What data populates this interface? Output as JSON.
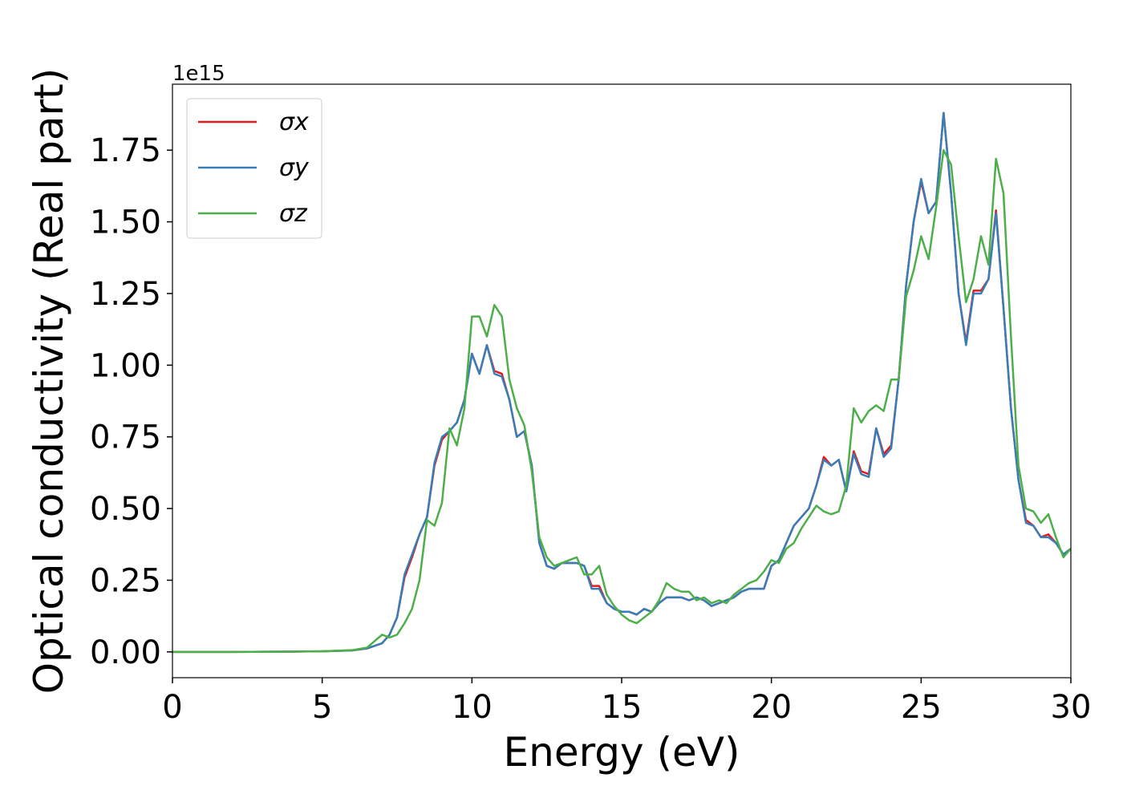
{
  "chart_data": {
    "type": "line",
    "xlabel": "Energy (eV)",
    "ylabel": "Optical conductivity (Real part)",
    "y_offset_text": "1e15",
    "xlim": [
      0,
      30
    ],
    "xticks": [
      0,
      5,
      10,
      15,
      20,
      25,
      30
    ],
    "ylim": [
      -0.09,
      1.98
    ],
    "yticks": [
      {
        "value": 0,
        "label": "0.00"
      },
      0.25,
      {
        "value": 0.5,
        "label": "0.50"
      },
      0.75,
      {
        "value": 1,
        "label": "1.00"
      },
      1.25,
      {
        "value": 1.5,
        "label": "1.50"
      },
      1.75
    ],
    "grid": false,
    "legend": "upper left",
    "x": [
      0,
      2,
      4,
      5,
      6,
      6.5,
      7,
      7.25,
      7.5,
      7.75,
      8,
      8.25,
      8.5,
      8.75,
      9,
      9.25,
      9.5,
      9.75,
      10,
      10.25,
      10.5,
      10.75,
      11,
      11.25,
      11.5,
      11.75,
      12,
      12.25,
      12.5,
      12.75,
      13,
      13.25,
      13.5,
      13.75,
      14,
      14.25,
      14.5,
      14.75,
      15,
      15.25,
      15.5,
      15.75,
      16,
      16.25,
      16.5,
      16.75,
      17,
      17.25,
      17.5,
      17.75,
      18,
      18.25,
      18.5,
      18.75,
      19,
      19.25,
      19.5,
      19.75,
      20,
      20.25,
      20.5,
      20.75,
      21,
      21.25,
      21.5,
      21.75,
      22,
      22.25,
      22.5,
      22.75,
      23,
      23.25,
      23.5,
      23.75,
      24,
      24.25,
      24.5,
      24.75,
      25,
      25.25,
      25.5,
      25.75,
      26,
      26.25,
      26.5,
      26.75,
      27,
      27.25,
      27.5,
      27.75,
      28,
      28.25,
      28.5,
      28.75,
      29,
      29.25,
      29.5,
      29.75,
      30
    ],
    "series": [
      {
        "name": "σx",
        "color": "#e41a1c",
        "values": [
          0,
          0,
          0.001,
          0.002,
          0.005,
          0.012,
          0.03,
          0.06,
          0.12,
          0.26,
          0.33,
          0.41,
          0.47,
          0.65,
          0.74,
          0.77,
          0.8,
          0.88,
          1.04,
          0.97,
          1.07,
          0.98,
          0.97,
          0.88,
          0.75,
          0.77,
          0.65,
          0.38,
          0.3,
          0.29,
          0.31,
          0.31,
          0.31,
          0.3,
          0.23,
          0.23,
          0.17,
          0.15,
          0.14,
          0.14,
          0.13,
          0.15,
          0.14,
          0.17,
          0.19,
          0.19,
          0.19,
          0.18,
          0.19,
          0.18,
          0.16,
          0.17,
          0.18,
          0.19,
          0.21,
          0.22,
          0.22,
          0.22,
          0.3,
          0.32,
          0.38,
          0.44,
          0.47,
          0.5,
          0.58,
          0.68,
          0.65,
          0.67,
          0.56,
          0.7,
          0.63,
          0.62,
          0.78,
          0.69,
          0.72,
          0.95,
          1.28,
          1.5,
          1.64,
          1.53,
          1.57,
          1.88,
          1.6,
          1.25,
          1.08,
          1.26,
          1.26,
          1.3,
          1.54,
          1.2,
          0.85,
          0.6,
          0.46,
          0.44,
          0.4,
          0.41,
          0.38,
          0.34,
          0.36
        ]
      },
      {
        "name": "σy",
        "color": "#377eb8",
        "values": [
          0,
          0,
          0.001,
          0.002,
          0.005,
          0.012,
          0.03,
          0.06,
          0.12,
          0.27,
          0.34,
          0.41,
          0.47,
          0.66,
          0.75,
          0.77,
          0.8,
          0.88,
          1.04,
          0.97,
          1.07,
          0.97,
          0.96,
          0.88,
          0.75,
          0.77,
          0.65,
          0.38,
          0.3,
          0.29,
          0.31,
          0.31,
          0.31,
          0.3,
          0.22,
          0.22,
          0.17,
          0.15,
          0.14,
          0.14,
          0.13,
          0.15,
          0.14,
          0.17,
          0.19,
          0.19,
          0.19,
          0.18,
          0.19,
          0.18,
          0.16,
          0.17,
          0.18,
          0.19,
          0.21,
          0.22,
          0.22,
          0.22,
          0.3,
          0.32,
          0.38,
          0.44,
          0.47,
          0.5,
          0.58,
          0.67,
          0.65,
          0.67,
          0.56,
          0.69,
          0.62,
          0.61,
          0.78,
          0.68,
          0.71,
          0.95,
          1.28,
          1.5,
          1.65,
          1.53,
          1.57,
          1.88,
          1.6,
          1.25,
          1.07,
          1.25,
          1.25,
          1.3,
          1.53,
          1.2,
          0.85,
          0.6,
          0.45,
          0.44,
          0.4,
          0.4,
          0.38,
          0.34,
          0.36
        ]
      },
      {
        "name": "σz",
        "color": "#4daf4a",
        "values": [
          0,
          0,
          0.001,
          0.002,
          0.006,
          0.015,
          0.06,
          0.05,
          0.06,
          0.1,
          0.15,
          0.25,
          0.46,
          0.44,
          0.52,
          0.78,
          0.72,
          0.85,
          1.17,
          1.17,
          1.1,
          1.21,
          1.17,
          0.95,
          0.85,
          0.79,
          0.63,
          0.4,
          0.33,
          0.3,
          0.31,
          0.32,
          0.33,
          0.27,
          0.27,
          0.3,
          0.2,
          0.16,
          0.13,
          0.11,
          0.1,
          0.12,
          0.14,
          0.18,
          0.24,
          0.22,
          0.21,
          0.21,
          0.18,
          0.19,
          0.17,
          0.18,
          0.17,
          0.2,
          0.22,
          0.24,
          0.25,
          0.28,
          0.32,
          0.31,
          0.36,
          0.38,
          0.43,
          0.47,
          0.51,
          0.49,
          0.48,
          0.49,
          0.58,
          0.85,
          0.8,
          0.84,
          0.86,
          0.84,
          0.95,
          0.95,
          1.24,
          1.33,
          1.45,
          1.37,
          1.55,
          1.75,
          1.7,
          1.45,
          1.22,
          1.3,
          1.45,
          1.35,
          1.72,
          1.6,
          1.1,
          0.65,
          0.5,
          0.49,
          0.45,
          0.48,
          0.4,
          0.33,
          0.36
        ]
      }
    ]
  }
}
